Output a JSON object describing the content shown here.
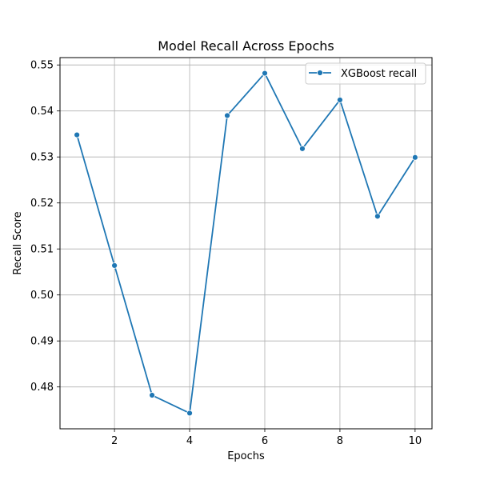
{
  "chart_data": {
    "type": "line",
    "title": "Model Recall Across Epochs",
    "xlabel": "Epochs",
    "ylabel": "Recall Score",
    "xlim": [
      0.55,
      10.45
    ],
    "ylim": [
      0.4709,
      0.5516
    ],
    "xticks": [
      2,
      4,
      6,
      8,
      10
    ],
    "xtick_labels": [
      "2",
      "4",
      "6",
      "8",
      "10"
    ],
    "yticks": [
      0.48,
      0.49,
      0.5,
      0.51,
      0.52,
      0.53,
      0.54,
      0.55
    ],
    "ytick_labels": [
      "0.48",
      "0.49",
      "0.50",
      "0.51",
      "0.52",
      "0.53",
      "0.54",
      "0.55"
    ],
    "grid": true,
    "legend_position": "top-right",
    "x": [
      1,
      2,
      3,
      4,
      5,
      6,
      7,
      8,
      9,
      10
    ],
    "series": [
      {
        "name": "XGBoost recall",
        "color": "#1f77b4",
        "marker": "circle",
        "values": [
          0.5348,
          0.5064,
          0.4782,
          0.4743,
          0.539,
          0.5482,
          0.5318,
          0.5424,
          0.5171,
          0.5299
        ]
      }
    ]
  }
}
